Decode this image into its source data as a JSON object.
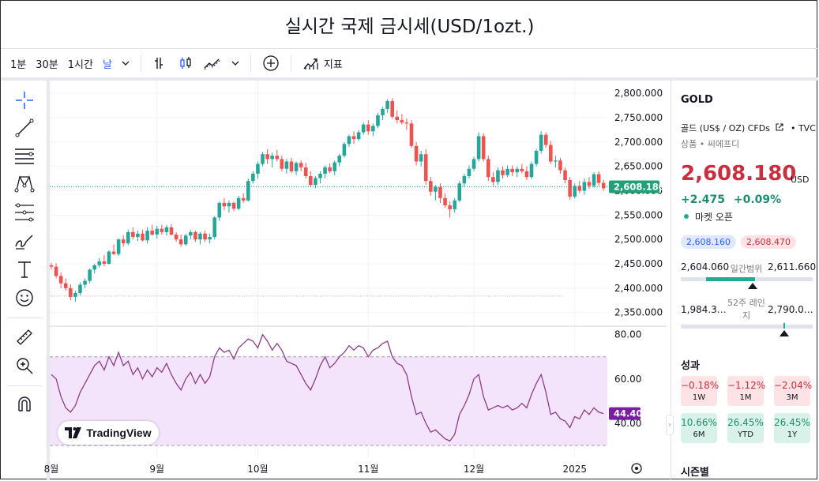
{
  "title": "실시간 국제 금시세(USD/1ozt.)",
  "toolbar": {
    "intervals": [
      "1분",
      "30분",
      "1시간",
      "날"
    ],
    "active_interval": "날",
    "indicators_label": "지표"
  },
  "right_panel": {
    "symbol": "GOLD",
    "name": "골드 (US$ / OZ) CFDs",
    "exchange": "TVC",
    "sub": "상품 • 씨에프디",
    "price": "2,608.180",
    "currency": "USD",
    "change": "+2.475",
    "change_pct": "+0.09%",
    "market_status": "마켓 오픈",
    "bid": "2,608.160",
    "ask": "2,608.470",
    "day_low": "2,604.060",
    "day_label": "일간범위",
    "day_high": "2,611.660",
    "w52_low": "1,984.3…",
    "w52_label": "52주 레인지",
    "w52_high": "2,790.0…",
    "performance_title": "성과",
    "performance": [
      {
        "value": "−0.18%",
        "period": "1W",
        "sign": "neg"
      },
      {
        "value": "−1.12%",
        "period": "1M",
        "sign": "neg"
      },
      {
        "value": "−2.04%",
        "period": "3M",
        "sign": "neg"
      },
      {
        "value": "10.66%",
        "period": "6M",
        "sign": "pos"
      },
      {
        "value": "26.45%",
        "period": "YTD",
        "sign": "pos"
      },
      {
        "value": "26.45%",
        "period": "1Y",
        "sign": "pos"
      }
    ],
    "seasonal_title": "시즌별"
  },
  "logo": "TradingView",
  "colors": {
    "up": "#26a69a",
    "down": "#ef5350",
    "rsi": "#8e3a8a",
    "rsi_fill": "#f3e4fb",
    "price_tag": "#22a079",
    "rsi_tag": "#7b1fa2"
  },
  "chart_data": [
    {
      "type": "candlestick",
      "symbol": "GOLD",
      "last_price": 2608.18,
      "y_ticks": [
        "2,800.000",
        "2,750.000",
        "2,700.000",
        "2,650.000",
        "2,600.000",
        "2,550.000",
        "2,500.000",
        "2,450.000",
        "2,400.000",
        "2,350.000"
      ],
      "ylim": [
        2330,
        2810
      ],
      "x_ticks": [
        "8월",
        "9월",
        "10월",
        "11월",
        "12월",
        "2025"
      ],
      "candles": [
        [
          2447,
          2452,
          2438,
          2444
        ],
        [
          2444,
          2451,
          2420,
          2425
        ],
        [
          2425,
          2432,
          2400,
          2410
        ],
        [
          2410,
          2420,
          2395,
          2400
        ],
        [
          2400,
          2408,
          2375,
          2382
        ],
        [
          2382,
          2395,
          2372,
          2390
        ],
        [
          2390,
          2412,
          2385,
          2407
        ],
        [
          2407,
          2420,
          2400,
          2415
        ],
        [
          2415,
          2440,
          2410,
          2438
        ],
        [
          2438,
          2450,
          2430,
          2447
        ],
        [
          2447,
          2462,
          2442,
          2455
        ],
        [
          2455,
          2468,
          2445,
          2450
        ],
        [
          2450,
          2478,
          2448,
          2475
        ],
        [
          2475,
          2490,
          2468,
          2470
        ],
        [
          2470,
          2502,
          2466,
          2500
        ],
        [
          2500,
          2508,
          2485,
          2492
        ],
        [
          2492,
          2520,
          2488,
          2515
        ],
        [
          2515,
          2525,
          2500,
          2505
        ],
        [
          2505,
          2518,
          2497,
          2512
        ],
        [
          2512,
          2520,
          2496,
          2498
        ],
        [
          2498,
          2525,
          2492,
          2518
        ],
        [
          2518,
          2530,
          2508,
          2510
        ],
        [
          2510,
          2528,
          2502,
          2522
        ],
        [
          2522,
          2530,
          2510,
          2515
        ],
        [
          2515,
          2530,
          2508,
          2525
        ],
        [
          2525,
          2532,
          2508,
          2510
        ],
        [
          2510,
          2515,
          2495,
          2500
        ],
        [
          2500,
          2510,
          2485,
          2490
        ],
        [
          2490,
          2512,
          2487,
          2508
        ],
        [
          2508,
          2520,
          2500,
          2515
        ],
        [
          2515,
          2518,
          2495,
          2500
        ],
        [
          2500,
          2515,
          2490,
          2512
        ],
        [
          2512,
          2518,
          2495,
          2500
        ],
        [
          2500,
          2512,
          2492,
          2505
        ],
        [
          2505,
          2548,
          2500,
          2545
        ],
        [
          2545,
          2578,
          2538,
          2575
        ],
        [
          2575,
          2585,
          2560,
          2568
        ],
        [
          2568,
          2580,
          2555,
          2575
        ],
        [
          2575,
          2578,
          2558,
          2563
        ],
        [
          2563,
          2590,
          2560,
          2585
        ],
        [
          2585,
          2595,
          2575,
          2580
        ],
        [
          2580,
          2625,
          2578,
          2620
        ],
        [
          2620,
          2640,
          2615,
          2635
        ],
        [
          2635,
          2660,
          2625,
          2655
        ],
        [
          2655,
          2680,
          2650,
          2675
        ],
        [
          2675,
          2685,
          2655,
          2665
        ],
        [
          2665,
          2678,
          2648,
          2672
        ],
        [
          2672,
          2684,
          2660,
          2665
        ],
        [
          2665,
          2672,
          2640,
          2645
        ],
        [
          2645,
          2665,
          2635,
          2660
        ],
        [
          2660,
          2668,
          2636,
          2640
        ],
        [
          2640,
          2660,
          2632,
          2657
        ],
        [
          2657,
          2662,
          2640,
          2648
        ],
        [
          2648,
          2658,
          2625,
          2630
        ],
        [
          2630,
          2640,
          2608,
          2612
        ],
        [
          2612,
          2630,
          2605,
          2626
        ],
        [
          2626,
          2640,
          2615,
          2635
        ],
        [
          2635,
          2652,
          2625,
          2648
        ],
        [
          2648,
          2656,
          2636,
          2640
        ],
        [
          2640,
          2662,
          2632,
          2658
        ],
        [
          2658,
          2676,
          2650,
          2672
        ],
        [
          2672,
          2700,
          2668,
          2696
        ],
        [
          2696,
          2715,
          2690,
          2712
        ],
        [
          2712,
          2722,
          2696,
          2706
        ],
        [
          2706,
          2725,
          2702,
          2720
        ],
        [
          2720,
          2740,
          2715,
          2736
        ],
        [
          2736,
          2745,
          2715,
          2722
        ],
        [
          2722,
          2738,
          2712,
          2733
        ],
        [
          2733,
          2760,
          2728,
          2755
        ],
        [
          2755,
          2772,
          2745,
          2768
        ],
        [
          2768,
          2788,
          2760,
          2784
        ],
        [
          2784,
          2790,
          2748,
          2752
        ],
        [
          2752,
          2765,
          2738,
          2745
        ],
        [
          2745,
          2757,
          2736,
          2740
        ],
        [
          2740,
          2748,
          2725,
          2738
        ],
        [
          2738,
          2745,
          2688,
          2692
        ],
        [
          2692,
          2700,
          2652,
          2660
        ],
        [
          2660,
          2682,
          2650,
          2675
        ],
        [
          2675,
          2685,
          2612,
          2620
        ],
        [
          2620,
          2628,
          2590,
          2598
        ],
        [
          2598,
          2612,
          2580,
          2608
        ],
        [
          2608,
          2615,
          2575,
          2585
        ],
        [
          2585,
          2595,
          2565,
          2570
        ],
        [
          2570,
          2578,
          2545,
          2562
        ],
        [
          2562,
          2585,
          2555,
          2580
        ],
        [
          2580,
          2620,
          2576,
          2615
        ],
        [
          2615,
          2635,
          2608,
          2630
        ],
        [
          2630,
          2652,
          2625,
          2645
        ],
        [
          2645,
          2670,
          2640,
          2665
        ],
        [
          2665,
          2720,
          2660,
          2712
        ],
        [
          2712,
          2718,
          2660,
          2665
        ],
        [
          2665,
          2672,
          2620,
          2628
        ],
        [
          2628,
          2638,
          2610,
          2618
        ],
        [
          2618,
          2648,
          2612,
          2642
        ],
        [
          2642,
          2650,
          2625,
          2632
        ],
        [
          2632,
          2652,
          2628,
          2645
        ],
        [
          2645,
          2652,
          2630,
          2638
        ],
        [
          2638,
          2650,
          2628,
          2645
        ],
        [
          2645,
          2655,
          2636,
          2640
        ],
        [
          2640,
          2650,
          2622,
          2628
        ],
        [
          2628,
          2660,
          2624,
          2655
        ],
        [
          2655,
          2686,
          2650,
          2682
        ],
        [
          2682,
          2722,
          2676,
          2715
        ],
        [
          2715,
          2720,
          2688,
          2694
        ],
        [
          2694,
          2702,
          2655,
          2660
        ],
        [
          2660,
          2672,
          2648,
          2662
        ],
        [
          2662,
          2668,
          2635,
          2642
        ],
        [
          2642,
          2648,
          2615,
          2622
        ],
        [
          2622,
          2628,
          2582,
          2588
        ],
        [
          2588,
          2615,
          2584,
          2610
        ],
        [
          2610,
          2620,
          2595,
          2600
        ],
        [
          2600,
          2625,
          2592,
          2618
        ],
        [
          2618,
          2628,
          2604,
          2610
        ],
        [
          2610,
          2638,
          2606,
          2634
        ],
        [
          2634,
          2640,
          2610,
          2616
        ],
        [
          2616,
          2622,
          2600,
          2605
        ]
      ]
    },
    {
      "type": "line",
      "name": "RSI",
      "last_value": 44.4,
      "y_ticks": [
        "80.00",
        "60.00",
        "40.00"
      ],
      "ylim": [
        30,
        82
      ],
      "bands": [
        70,
        30
      ],
      "values": [
        62,
        60,
        52,
        47,
        45,
        48,
        54,
        58,
        62,
        66,
        68,
        64,
        70,
        66,
        72,
        66,
        68,
        62,
        65,
        60,
        64,
        61,
        65,
        63,
        67,
        62,
        58,
        55,
        60,
        63,
        58,
        62,
        58,
        61,
        70,
        74,
        72,
        73,
        69,
        74,
        76,
        78,
        77,
        74,
        80,
        77,
        73,
        76,
        73,
        68,
        67,
        66,
        62,
        58,
        55,
        60,
        66,
        70,
        65,
        67,
        70,
        72,
        75,
        73,
        75,
        74,
        70,
        73,
        74,
        76,
        77,
        70,
        67,
        66,
        62,
        52,
        44,
        45,
        40,
        36,
        37,
        35,
        33,
        32,
        35,
        44,
        48,
        53,
        60,
        62,
        52,
        46,
        47,
        48,
        47,
        48,
        46,
        47,
        49,
        47,
        53,
        58,
        62,
        54,
        44,
        45,
        42,
        41,
        38,
        43,
        42,
        46,
        44,
        47,
        45,
        44.4
      ]
    }
  ]
}
